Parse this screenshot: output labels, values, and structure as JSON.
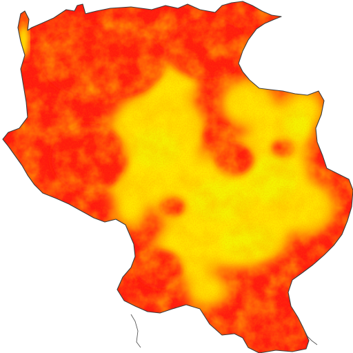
{
  "map": {
    "colors": {
      "background": "#ffffff",
      "high": "#ff1a0f",
      "mid": "#ff7a10",
      "low": "#ffe600",
      "lowest": "#f4f400",
      "outline": "#3a3a3a"
    },
    "legend": null
  }
}
